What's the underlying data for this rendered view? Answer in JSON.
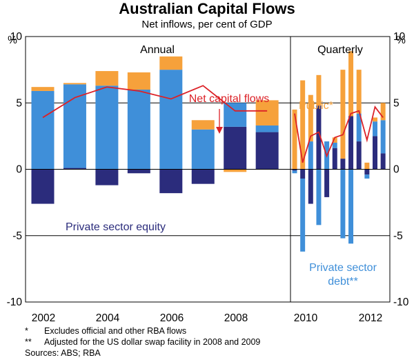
{
  "chart_data": {
    "type": "bar",
    "title": "Australian Capital Flows",
    "subtitle": "Net inflows, per cent of GDP",
    "ylabel": "%",
    "ylim": [
      -10,
      10
    ],
    "yticks": [
      10,
      5,
      0,
      -5,
      -10
    ],
    "xticks": [
      "2002",
      "2004",
      "2006",
      "2008",
      "2010",
      "2012"
    ],
    "panels": [
      "Annual",
      "Quarterly"
    ],
    "annual": {
      "years": [
        2002,
        2003,
        2004,
        2005,
        2006,
        2007,
        2008,
        2009
      ],
      "private_equity": [
        -2.6,
        0.1,
        -1.2,
        -0.3,
        -1.8,
        -1.1,
        3.2,
        2.8
      ],
      "private_debt": [
        5.9,
        6.3,
        6.3,
        6.0,
        7.5,
        3.0,
        1.8,
        0.5
      ],
      "public": [
        0.3,
        0.1,
        1.1,
        1.3,
        1.0,
        0.7,
        -0.2,
        1.9
      ],
      "net": [
        3.9,
        5.4,
        6.2,
        5.9,
        5.3,
        6.3,
        4.4,
        4.4
      ]
    },
    "quarterly": {
      "quarters": [
        "2009Q4",
        "2010Q1",
        "2010Q2",
        "2010Q3",
        "2010Q4",
        "2011Q1",
        "2011Q2",
        "2011Q3",
        "2011Q4",
        "2012Q1",
        "2012Q2",
        "2012Q3"
      ],
      "private_equity": [
        -0.1,
        -0.7,
        -2.6,
        4.8,
        -2.1,
        1.6,
        0.8,
        4.0,
        2.1,
        -0.4,
        2.5,
        1.2
      ],
      "private_debt": [
        -0.2,
        -5.5,
        2.1,
        -4.2,
        2.1,
        0.4,
        -5.2,
        -5.6,
        2.1,
        -0.3,
        1.1,
        2.5
      ],
      "public": [
        4.5,
        6.7,
        3.5,
        2.3,
        0.0,
        0.4,
        6.7,
        4.9,
        3.3,
        0.5,
        0.3,
        1.3
      ],
      "net": [
        4.2,
        0.5,
        2.5,
        2.8,
        1.0,
        2.4,
        2.6,
        4.2,
        4.4,
        2.2,
        4.7,
        3.9
      ]
    },
    "series": [
      {
        "name": "Private sector equity",
        "color": "#2b2c7c"
      },
      {
        "name": "Private sector debt**",
        "color": "#3f8fd9"
      },
      {
        "name": "Public*",
        "color": "#f6a13b"
      },
      {
        "name": "Net capital flows",
        "color": "#dc2127"
      }
    ],
    "annotations": {
      "net": "Net capital flows",
      "public": "Public*",
      "equity": "Private sector equity",
      "debt_1": "Private sector",
      "debt_2": "debt**"
    }
  },
  "notes": {
    "star1_mark": "*",
    "star1_text": "Excludes official and other RBA flows",
    "star2_mark": "**",
    "star2_text": "Adjusted for the US dollar swap facility in 2008 and 2009",
    "sources": "Sources: ABS; RBA"
  }
}
